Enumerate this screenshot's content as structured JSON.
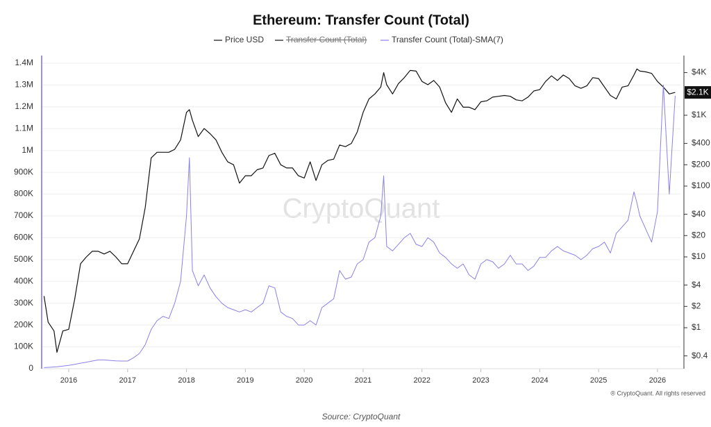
{
  "chart_data": {
    "type": "line",
    "title": "Ethereum: Transfer Count (Total)",
    "x": [
      2015.58,
      2015.65,
      2015.75,
      2015.8,
      2015.9,
      2016.0,
      2016.1,
      2016.2,
      2016.3,
      2016.4,
      2016.5,
      2016.6,
      2016.7,
      2016.8,
      2016.9,
      2017.0,
      2017.1,
      2017.2,
      2017.3,
      2017.4,
      2017.5,
      2017.6,
      2017.7,
      2017.8,
      2017.9,
      2018.0,
      2018.05,
      2018.1,
      2018.2,
      2018.3,
      2018.4,
      2018.5,
      2018.6,
      2018.7,
      2018.8,
      2018.9,
      2019.0,
      2019.1,
      2019.2,
      2019.3,
      2019.4,
      2019.5,
      2019.6,
      2019.7,
      2019.8,
      2019.9,
      2020.0,
      2020.1,
      2020.2,
      2020.3,
      2020.4,
      2020.5,
      2020.6,
      2020.7,
      2020.8,
      2020.9,
      2021.0,
      2021.1,
      2021.2,
      2021.3,
      2021.35,
      2021.4,
      2021.5,
      2021.6,
      2021.7,
      2021.8,
      2021.9,
      2022.0,
      2022.1,
      2022.2,
      2022.3,
      2022.4,
      2022.5,
      2022.6,
      2022.7,
      2022.8,
      2022.9,
      2023.0,
      2023.1,
      2023.2,
      2023.3,
      2023.4,
      2023.5,
      2023.6,
      2023.7,
      2023.8,
      2023.9,
      2024.0,
      2024.1,
      2024.2,
      2024.3,
      2024.4,
      2024.5,
      2024.6,
      2024.7,
      2024.8,
      2024.9,
      2025.0,
      2025.1,
      2025.2,
      2025.3,
      2025.4,
      2025.5,
      2025.6,
      2025.65,
      2025.7,
      2025.8,
      2025.9,
      2026.0,
      2026.1,
      2026.2,
      2026.3
    ],
    "series": [
      {
        "name": "Price USD",
        "color": "#111111",
        "axis": "y2",
        "values": [
          2.8,
          1.2,
          0.9,
          0.45,
          0.9,
          0.95,
          2.5,
          8,
          10,
          12,
          12,
          11,
          12,
          10,
          8,
          8,
          12,
          18,
          50,
          250,
          300,
          300,
          300,
          330,
          450,
          1100,
          1200,
          850,
          500,
          650,
          550,
          450,
          300,
          220,
          200,
          110,
          140,
          140,
          170,
          180,
          270,
          290,
          200,
          180,
          180,
          140,
          130,
          220,
          120,
          200,
          230,
          240,
          380,
          360,
          400,
          580,
          1100,
          1700,
          2000,
          2500,
          4000,
          2700,
          2000,
          2800,
          3400,
          4300,
          4200,
          3000,
          2700,
          3100,
          2500,
          1500,
          1100,
          1700,
          1300,
          1300,
          1200,
          1550,
          1600,
          1800,
          1850,
          1900,
          1850,
          1650,
          1600,
          1800,
          2200,
          2300,
          3000,
          3600,
          3100,
          3700,
          3300,
          2600,
          2400,
          2600,
          3400,
          3300,
          2500,
          1900,
          1700,
          2500,
          2600,
          3700,
          4500,
          4200,
          4100,
          3900,
          3000,
          2500,
          2000,
          2100
        ]
      },
      {
        "name": "Transfer Count (Total)",
        "color": "#111111",
        "hidden": true
      },
      {
        "name": "Transfer Count (Total)-SMA(7)",
        "color": "#8a80e8",
        "values": [
          5000,
          6000,
          8000,
          9000,
          12000,
          15000,
          20000,
          25000,
          30000,
          35000,
          40000,
          40000,
          38000,
          36000,
          35000,
          35000,
          50000,
          70000,
          110000,
          180000,
          220000,
          240000,
          230000,
          300000,
          400000,
          700000,
          967000,
          450000,
          380000,
          430000,
          370000,
          330000,
          300000,
          280000,
          270000,
          260000,
          270000,
          260000,
          280000,
          300000,
          380000,
          370000,
          260000,
          240000,
          230000,
          200000,
          200000,
          220000,
          200000,
          280000,
          300000,
          320000,
          450000,
          410000,
          420000,
          480000,
          500000,
          580000,
          600000,
          700000,
          884000,
          560000,
          540000,
          570000,
          600000,
          620000,
          570000,
          560000,
          600000,
          580000,
          530000,
          510000,
          480000,
          460000,
          480000,
          430000,
          410000,
          480000,
          500000,
          490000,
          460000,
          480000,
          520000,
          480000,
          480000,
          450000,
          470000,
          510000,
          510000,
          540000,
          560000,
          540000,
          530000,
          520000,
          500000,
          520000,
          550000,
          560000,
          580000,
          530000,
          620000,
          650000,
          680000,
          810000,
          760000,
          700000,
          640000,
          580000,
          720000,
          1300000,
          800000,
          1250000
        ]
      }
    ],
    "xlim": [
      2015.54,
      2026.39
    ],
    "xticks": [
      2016,
      2017,
      2018,
      2019,
      2020,
      2021,
      2022,
      2023,
      2024,
      2025,
      2026
    ],
    "ylim": [
      0,
      1400000
    ],
    "yticks": [
      0,
      {
        "value": 100000,
        "label": "100K"
      },
      {
        "value": 200000,
        "label": "200K"
      },
      {
        "value": 300000,
        "label": "300K"
      },
      {
        "value": 400000,
        "label": "400K"
      },
      {
        "value": 500000,
        "label": "500K"
      },
      {
        "value": 600000,
        "label": "600K"
      },
      {
        "value": 700000,
        "label": "700K"
      },
      {
        "value": 800000,
        "label": "800K"
      },
      {
        "value": 900000,
        "label": "900K"
      },
      {
        "value": 1000000,
        "label": "1M"
      },
      {
        "value": 1100000,
        "label": "1.1M"
      },
      {
        "value": 1200000,
        "label": "1.2M"
      },
      {
        "value": 1300000,
        "label": "1.3M"
      },
      {
        "value": 1400000,
        "label": "1.4M"
      }
    ],
    "y2lim": [
      0.264,
      5433
    ],
    "y2_scale": "log",
    "y2ticks": [
      {
        "value": 0.4,
        "label": "$0.4"
      },
      {
        "value": 1,
        "label": "$1"
      },
      {
        "value": 2,
        "label": "$2"
      },
      {
        "value": 4,
        "label": "$4"
      },
      {
        "value": 10,
        "label": "$10"
      },
      {
        "value": 20,
        "label": "$20"
      },
      {
        "value": 40,
        "label": "$40"
      },
      {
        "value": 100,
        "label": "$100"
      },
      {
        "value": 200,
        "label": "$200"
      },
      {
        "value": 400,
        "label": "$400"
      },
      {
        "value": 1000,
        "label": "$1K"
      },
      {
        "value": 4000,
        "label": "$4K"
      }
    ],
    "price_label": {
      "value": 2100,
      "label": "$2.1K"
    },
    "grid": true,
    "watermark": "CryptoQuant",
    "copyright": "® CryptoQuant. All rights reserved",
    "source": "Source: CryptoQuant"
  }
}
